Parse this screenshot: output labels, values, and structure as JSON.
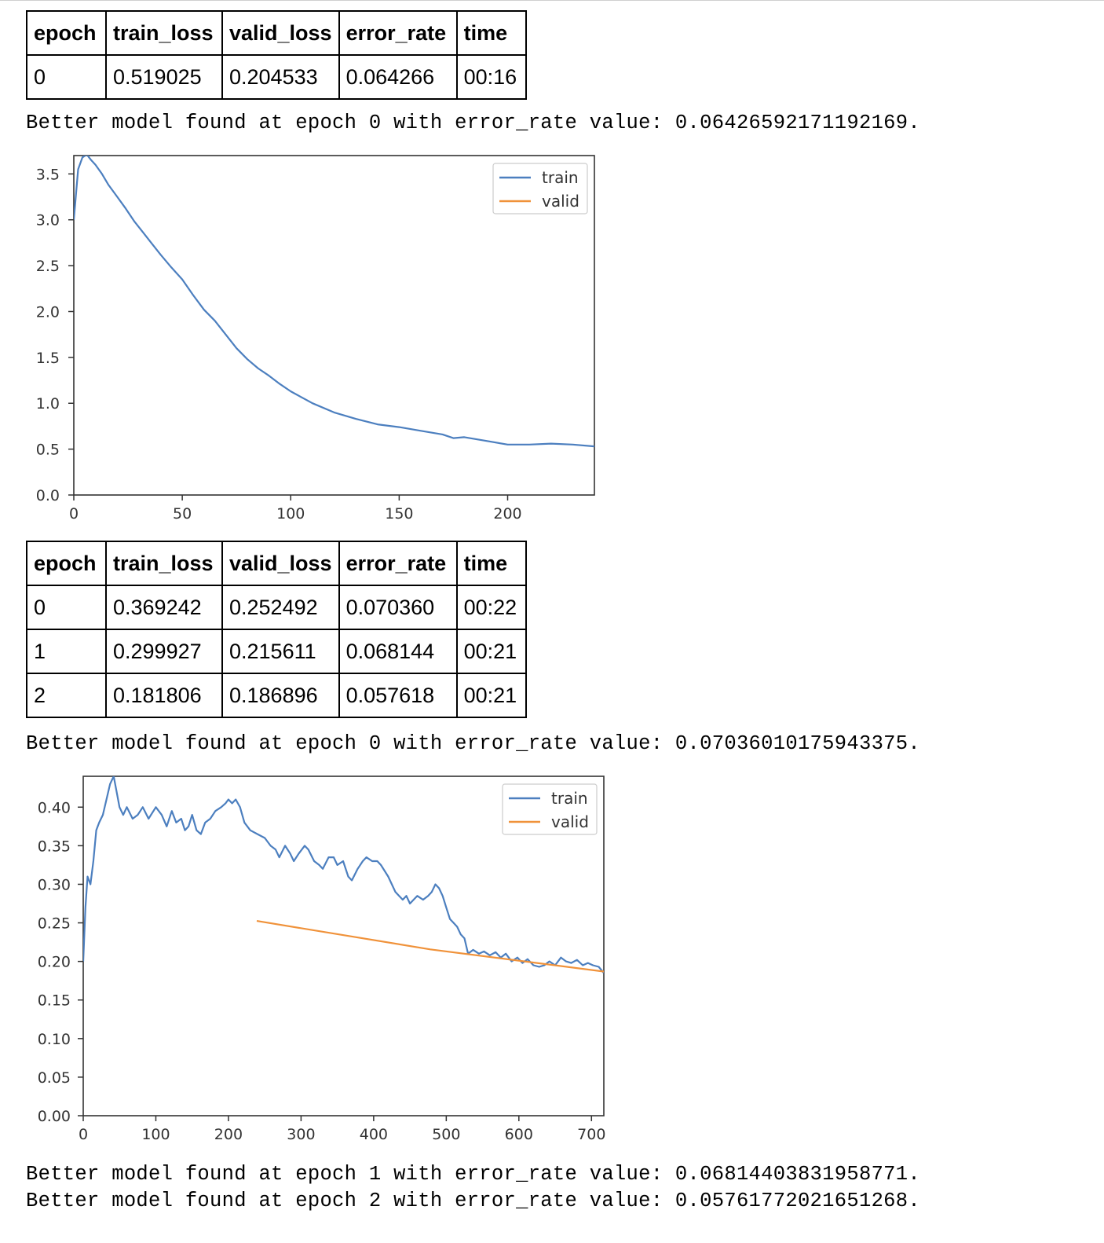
{
  "table1": {
    "headers": [
      "epoch",
      "train_loss",
      "valid_loss",
      "error_rate",
      "time"
    ],
    "rows": [
      [
        "0",
        "0.519025",
        "0.204533",
        "0.064266",
        "00:16"
      ]
    ]
  },
  "messages": {
    "m1": "Better model found at epoch 0 with error_rate value: 0.06426592171192169.",
    "m2": "Better model found at epoch 0 with error_rate value: 0.07036010175943375.",
    "m3": "Better model found at epoch 1 with error_rate value: 0.06814403831958771.",
    "m4": "Better model found at epoch 2 with error_rate value: 0.05761772021651268."
  },
  "table2": {
    "headers": [
      "epoch",
      "train_loss",
      "valid_loss",
      "error_rate",
      "time"
    ],
    "rows": [
      [
        "0",
        "0.369242",
        "0.252492",
        "0.070360",
        "00:22"
      ],
      [
        "1",
        "0.299927",
        "0.215611",
        "0.068144",
        "00:21"
      ],
      [
        "2",
        "0.181806",
        "0.186896",
        "0.057618",
        "00:21"
      ]
    ]
  },
  "colors": {
    "train": "#4c7fbf",
    "valid": "#f0923a"
  },
  "chart_data": [
    {
      "type": "line",
      "xlim": [
        0,
        240
      ],
      "ylim": [
        0,
        3.7
      ],
      "xticks": [
        "0",
        "50",
        "100",
        "150",
        "200"
      ],
      "xtick_values": [
        0,
        50,
        100,
        150,
        200
      ],
      "yticks": [
        "0.0",
        "0.5",
        "1.0",
        "1.5",
        "2.0",
        "2.5",
        "3.0",
        "3.5"
      ],
      "ytick_values": [
        0,
        0.5,
        1.0,
        1.5,
        2.0,
        2.5,
        3.0,
        3.5
      ],
      "legend": [
        "train",
        "valid"
      ],
      "legend_position": "top-right",
      "grid": false,
      "series": [
        {
          "name": "train",
          "color": "#4c7fbf",
          "x": [
            0,
            2,
            4,
            6,
            8,
            10,
            13,
            16,
            20,
            24,
            28,
            32,
            36,
            40,
            45,
            50,
            55,
            60,
            65,
            70,
            75,
            80,
            85,
            90,
            95,
            100,
            110,
            120,
            130,
            140,
            150,
            160,
            170,
            175,
            180,
            190,
            200,
            210,
            220,
            230,
            240
          ],
          "y": [
            3.0,
            3.55,
            3.68,
            3.71,
            3.65,
            3.6,
            3.5,
            3.38,
            3.25,
            3.12,
            2.98,
            2.86,
            2.74,
            2.62,
            2.48,
            2.35,
            2.18,
            2.02,
            1.9,
            1.75,
            1.6,
            1.48,
            1.38,
            1.3,
            1.21,
            1.13,
            1.0,
            0.9,
            0.83,
            0.77,
            0.74,
            0.7,
            0.66,
            0.62,
            0.63,
            0.59,
            0.55,
            0.55,
            0.56,
            0.55,
            0.53
          ]
        },
        {
          "name": "valid",
          "color": "#f0923a",
          "x": [],
          "y": []
        }
      ]
    },
    {
      "type": "line",
      "xlim": [
        0,
        717
      ],
      "ylim": [
        0,
        0.44
      ],
      "xticks": [
        "0",
        "100",
        "200",
        "300",
        "400",
        "500",
        "600",
        "700"
      ],
      "xtick_values": [
        0,
        100,
        200,
        300,
        400,
        500,
        600,
        700
      ],
      "yticks": [
        "0.00",
        "0.05",
        "0.10",
        "0.15",
        "0.20",
        "0.25",
        "0.30",
        "0.35",
        "0.40"
      ],
      "ytick_values": [
        0,
        0.05,
        0.1,
        0.15,
        0.2,
        0.25,
        0.3,
        0.35,
        0.4
      ],
      "legend": [
        "train",
        "valid"
      ],
      "legend_position": "top-right",
      "grid": false,
      "series": [
        {
          "name": "train",
          "color": "#4c7fbf",
          "x": [
            0,
            3,
            6,
            10,
            14,
            18,
            22,
            27,
            32,
            37,
            42,
            46,
            50,
            55,
            60,
            68,
            75,
            82,
            90,
            100,
            108,
            115,
            122,
            128,
            135,
            140,
            145,
            150,
            156,
            162,
            168,
            175,
            182,
            190,
            196,
            200,
            205,
            210,
            216,
            222,
            230,
            240,
            250,
            258,
            265,
            270,
            278,
            285,
            290,
            297,
            305,
            310,
            318,
            325,
            330,
            338,
            345,
            350,
            358,
            365,
            370,
            378,
            385,
            390,
            398,
            405,
            410,
            420,
            430,
            440,
            445,
            450,
            455,
            460,
            468,
            475,
            480,
            485,
            490,
            495,
            500,
            505,
            510,
            515,
            520,
            525,
            530,
            537,
            545,
            552,
            560,
            568,
            575,
            582,
            590,
            598,
            605,
            612,
            620,
            628,
            635,
            642,
            650,
            658,
            665,
            672,
            680,
            688,
            695,
            702,
            710,
            717
          ],
          "y": [
            0.2,
            0.27,
            0.31,
            0.3,
            0.33,
            0.37,
            0.38,
            0.39,
            0.41,
            0.43,
            0.44,
            0.42,
            0.4,
            0.39,
            0.4,
            0.385,
            0.39,
            0.4,
            0.385,
            0.4,
            0.39,
            0.375,
            0.395,
            0.38,
            0.385,
            0.37,
            0.375,
            0.39,
            0.37,
            0.365,
            0.38,
            0.385,
            0.395,
            0.4,
            0.405,
            0.41,
            0.405,
            0.41,
            0.4,
            0.38,
            0.37,
            0.365,
            0.36,
            0.35,
            0.345,
            0.335,
            0.35,
            0.34,
            0.33,
            0.34,
            0.35,
            0.345,
            0.33,
            0.325,
            0.32,
            0.335,
            0.335,
            0.325,
            0.33,
            0.31,
            0.305,
            0.32,
            0.33,
            0.335,
            0.33,
            0.33,
            0.325,
            0.31,
            0.29,
            0.28,
            0.285,
            0.275,
            0.28,
            0.285,
            0.28,
            0.285,
            0.29,
            0.3,
            0.295,
            0.285,
            0.27,
            0.255,
            0.25,
            0.245,
            0.235,
            0.23,
            0.21,
            0.215,
            0.21,
            0.213,
            0.208,
            0.212,
            0.205,
            0.21,
            0.2,
            0.205,
            0.198,
            0.203,
            0.195,
            0.193,
            0.195,
            0.2,
            0.195,
            0.205,
            0.2,
            0.198,
            0.202,
            0.195,
            0.198,
            0.195,
            0.193,
            0.185
          ]
        },
        {
          "name": "valid",
          "color": "#f0923a",
          "x": [
            239,
            478,
            717
          ],
          "y": [
            0.252492,
            0.215611,
            0.186896
          ]
        }
      ]
    }
  ]
}
